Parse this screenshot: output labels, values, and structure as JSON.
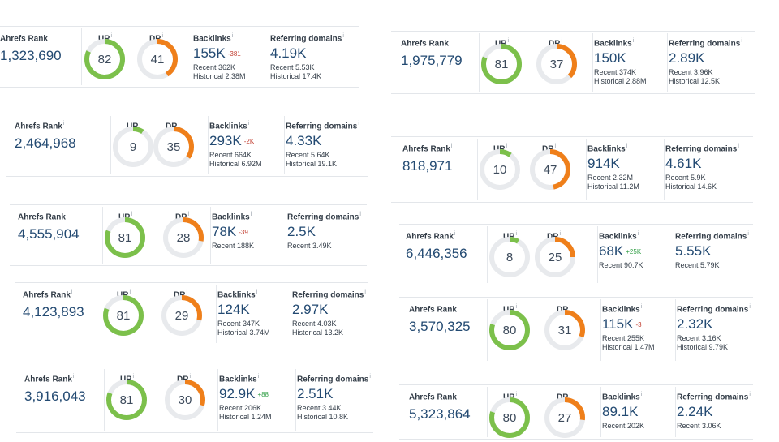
{
  "labels": {
    "ahrefs_rank": "Ahrefs Rank",
    "ur": "UR",
    "dr": "DR",
    "backlinks": "Backlinks",
    "referring_domains": "Referring domains",
    "info": "i"
  },
  "colors": {
    "ur": "#7cc04b",
    "dr": "#ef7f1a",
    "track": "#e8eaed",
    "value": "#234a72"
  },
  "cards": [
    {
      "rank": "1,323,690",
      "ur": 82,
      "dr": 41,
      "backlinks": "155K",
      "bl_delta": "-381",
      "bl_delta_sign": "neg",
      "bl_recent": "Recent 362K",
      "bl_historical": "Historical 2.38M",
      "rd": "4.19K",
      "rd_recent": "Recent 5.53K",
      "rd_historical": "Historical 17.4K"
    },
    {
      "rank": "2,464,968",
      "ur": 9,
      "dr": 35,
      "backlinks": "293K",
      "bl_delta": "-2K",
      "bl_delta_sign": "neg",
      "bl_recent": "Recent 664K",
      "bl_historical": "Historical 6.92M",
      "rd": "4.33K",
      "rd_recent": "Recent 5.64K",
      "rd_historical": "Historical 19.1K"
    },
    {
      "rank": "4,555,904",
      "ur": 81,
      "dr": 28,
      "backlinks": "78K",
      "bl_delta": "-39",
      "bl_delta_sign": "neg",
      "bl_recent": "Recent 188K",
      "bl_historical": "",
      "rd": "2.5K",
      "rd_recent": "Recent 3.49K",
      "rd_historical": ""
    },
    {
      "rank": "4,123,893",
      "ur": 81,
      "dr": 29,
      "backlinks": "124K",
      "bl_delta": "",
      "bl_delta_sign": "",
      "bl_recent": "Recent 347K",
      "bl_historical": "Historical 3.74M",
      "rd": "2.97K",
      "rd_recent": "Recent 4.03K",
      "rd_historical": "Historical 13.2K"
    },
    {
      "rank": "3,916,043",
      "ur": 81,
      "dr": 30,
      "backlinks": "92.9K",
      "bl_delta": "+88",
      "bl_delta_sign": "pos",
      "bl_recent": "Recent 206K",
      "bl_historical": "Historical 1.24M",
      "rd": "2.51K",
      "rd_recent": "Recent 3.44K",
      "rd_historical": "Historical 10.8K"
    },
    {
      "rank": "1,975,779",
      "ur": 81,
      "dr": 37,
      "backlinks": "150K",
      "bl_delta": "",
      "bl_delta_sign": "",
      "bl_recent": "Recent 374K",
      "bl_historical": "Historical 2.88M",
      "rd": "2.89K",
      "rd_recent": "Recent 3.96K",
      "rd_historical": "Historical 12.5K"
    },
    {
      "rank": "818,971",
      "ur": 10,
      "dr": 47,
      "backlinks": "914K",
      "bl_delta": "",
      "bl_delta_sign": "",
      "bl_recent": "Recent 2.32M",
      "bl_historical": "Historical 11.2M",
      "rd": "4.61K",
      "rd_recent": "Recent 5.9K",
      "rd_historical": "Historical 14.6K"
    },
    {
      "rank": "6,446,356",
      "ur": 8,
      "dr": 25,
      "backlinks": "68K",
      "bl_delta": "+25K",
      "bl_delta_sign": "pos",
      "bl_recent": "Recent 90.7K",
      "bl_historical": "",
      "rd": "5.55K",
      "rd_recent": "Recent 5.79K",
      "rd_historical": ""
    },
    {
      "rank": "3,570,325",
      "ur": 80,
      "dr": 31,
      "backlinks": "115K",
      "bl_delta": "-3",
      "bl_delta_sign": "neg",
      "bl_recent": "Recent 255K",
      "bl_historical": "Historical 1.47M",
      "rd": "2.32K",
      "rd_recent": "Recent 3.16K",
      "rd_historical": "Historical 9.79K"
    },
    {
      "rank": "5,323,864",
      "ur": 80,
      "dr": 27,
      "backlinks": "89.1K",
      "bl_delta": "",
      "bl_delta_sign": "",
      "bl_recent": "Recent 202K",
      "bl_historical": "",
      "rd": "2.24K",
      "rd_recent": "Recent 3.06K",
      "rd_historical": ""
    }
  ]
}
